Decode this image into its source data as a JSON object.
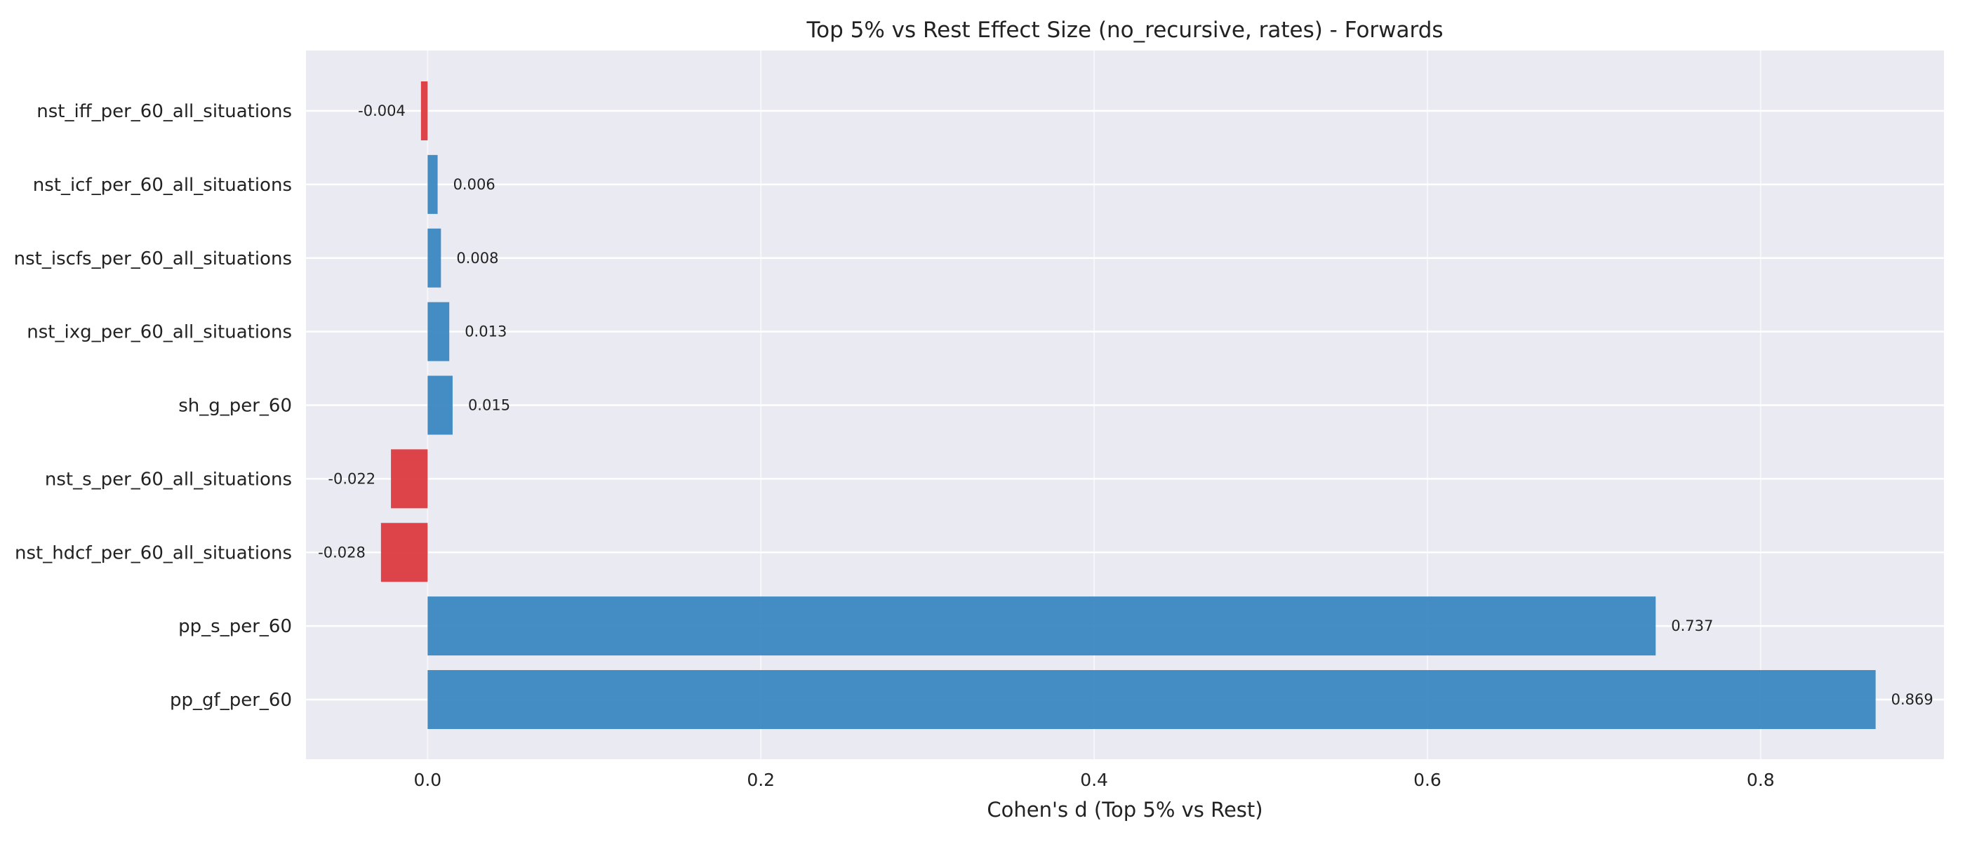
{
  "chart_data": {
    "type": "bar",
    "orientation": "horizontal",
    "title": "Top 5% vs Rest Effect Size (no_recursive, rates) - Forwards",
    "xlabel": "Cohen's d (Top 5% vs Rest)",
    "ylabel": "",
    "xlim": [
      -0.073,
      0.91
    ],
    "xticks": [
      0.0,
      0.2,
      0.4,
      0.6,
      0.8
    ],
    "xtick_labels": [
      "0.0",
      "0.2",
      "0.4",
      "0.6",
      "0.8"
    ],
    "grid": true,
    "legend": "none",
    "colors": {
      "positive": "#3b87c1",
      "negative": "#dc3b3f",
      "plot_background": "#eaeaf2",
      "grid": "#ffffff"
    },
    "categories": [
      "nst_iff_per_60_all_situations",
      "nst_icf_per_60_all_situations",
      "nst_iscfs_per_60_all_situations",
      "nst_ixg_per_60_all_situations",
      "sh_g_per_60",
      "nst_s_per_60_all_situations",
      "nst_hdcf_per_60_all_situations",
      "pp_s_per_60",
      "pp_gf_per_60"
    ],
    "values": [
      -0.004,
      0.006,
      0.008,
      0.013,
      0.015,
      -0.022,
      -0.028,
      0.737,
      0.869
    ],
    "value_labels": [
      "-0.004",
      "0.006",
      "0.008",
      "0.013",
      "0.015",
      "-0.022",
      "-0.028",
      "0.737",
      "0.869"
    ]
  }
}
